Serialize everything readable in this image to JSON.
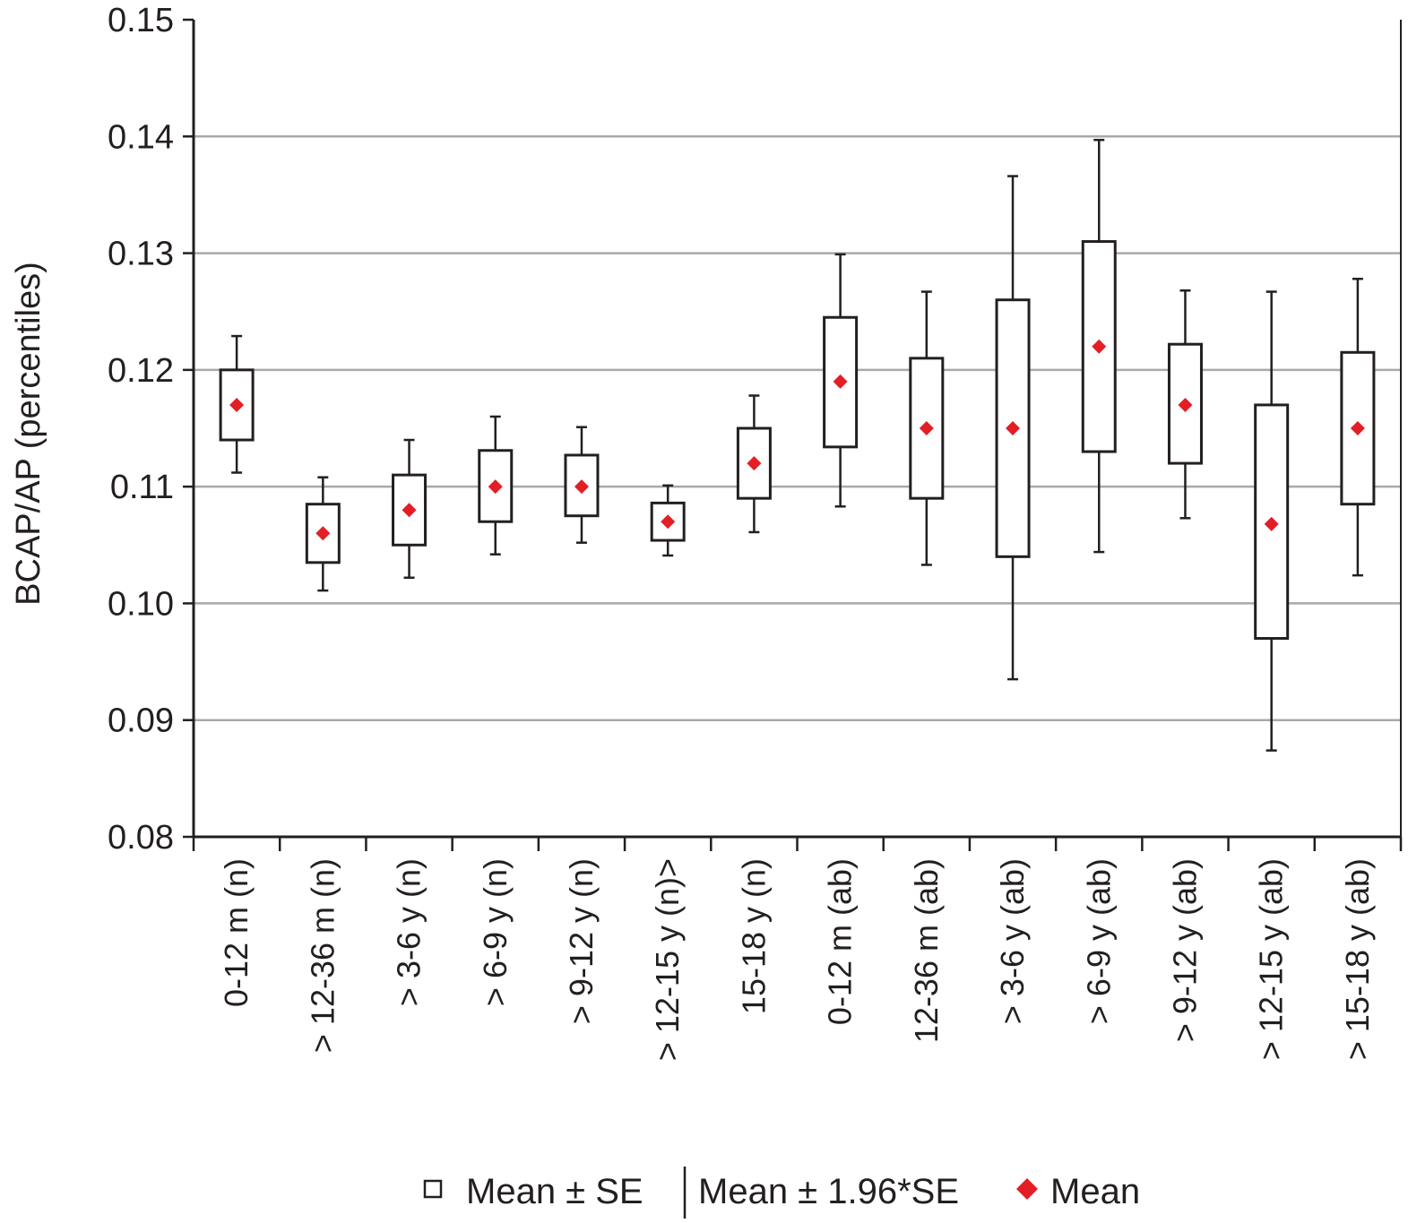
{
  "chart_data": {
    "type": "box",
    "title": "",
    "xlabel": "",
    "ylabel": "BCAP/AP (percentiles)",
    "ylim": [
      0.08,
      0.15
    ],
    "yticks": [
      "0.08",
      "0.09",
      "0.10",
      "0.11",
      "0.12",
      "0.13",
      "0.14",
      "0.15"
    ],
    "grid": "horizontal",
    "legend_position": "bottom",
    "colors": {
      "mean_marker": "#e31e24",
      "box": "#231f20",
      "grid": "#a7a9ac"
    },
    "categories": [
      "0-12 m (n)",
      "> 12-36 m (n)",
      "> 3-6 y (n)",
      "> 6-9 y (n)",
      "> 9-12 y (n)",
      "> 12-15 y (n)>",
      "15-18 y (n)",
      "0-12 m (ab)",
      "12-36 m (ab)",
      "> 3-6 y (ab)",
      "> 6-9 y (ab)",
      "> 9-12 y (ab)",
      "> 12-15 y (ab)",
      "> 15-18 y (ab)"
    ],
    "series": [
      {
        "name": "Mean",
        "values": [
          0.117,
          0.106,
          0.108,
          0.11,
          0.11,
          0.107,
          0.112,
          0.119,
          0.115,
          0.115,
          0.122,
          0.117,
          0.1068,
          0.115
        ]
      },
      {
        "name": "Mean ± SE",
        "low": [
          0.114,
          0.1035,
          0.105,
          0.107,
          0.1075,
          0.1054,
          0.109,
          0.1134,
          0.109,
          0.104,
          0.113,
          0.112,
          0.097,
          0.1085
        ],
        "high": [
          0.12,
          0.1085,
          0.111,
          0.1131,
          0.1127,
          0.1086,
          0.115,
          0.1245,
          0.121,
          0.126,
          0.131,
          0.1222,
          0.117,
          0.1215
        ]
      },
      {
        "name": "Mean ± 1.96*SE",
        "low": [
          0.1112,
          0.1011,
          0.1022,
          0.1042,
          0.1052,
          0.1041,
          0.1061,
          0.1083,
          0.1033,
          0.0935,
          0.1044,
          0.1073,
          0.0874,
          0.1024
        ],
        "high": [
          0.1229,
          0.1108,
          0.114,
          0.116,
          0.1151,
          0.1101,
          0.1178,
          0.1299,
          0.1267,
          0.1366,
          0.1397,
          0.1268,
          0.1267,
          0.1278
        ]
      }
    ]
  },
  "legend": {
    "box_label": "Mean ± SE",
    "whisker_label": "Mean ± 1.96*SE",
    "mean_label": "Mean"
  }
}
